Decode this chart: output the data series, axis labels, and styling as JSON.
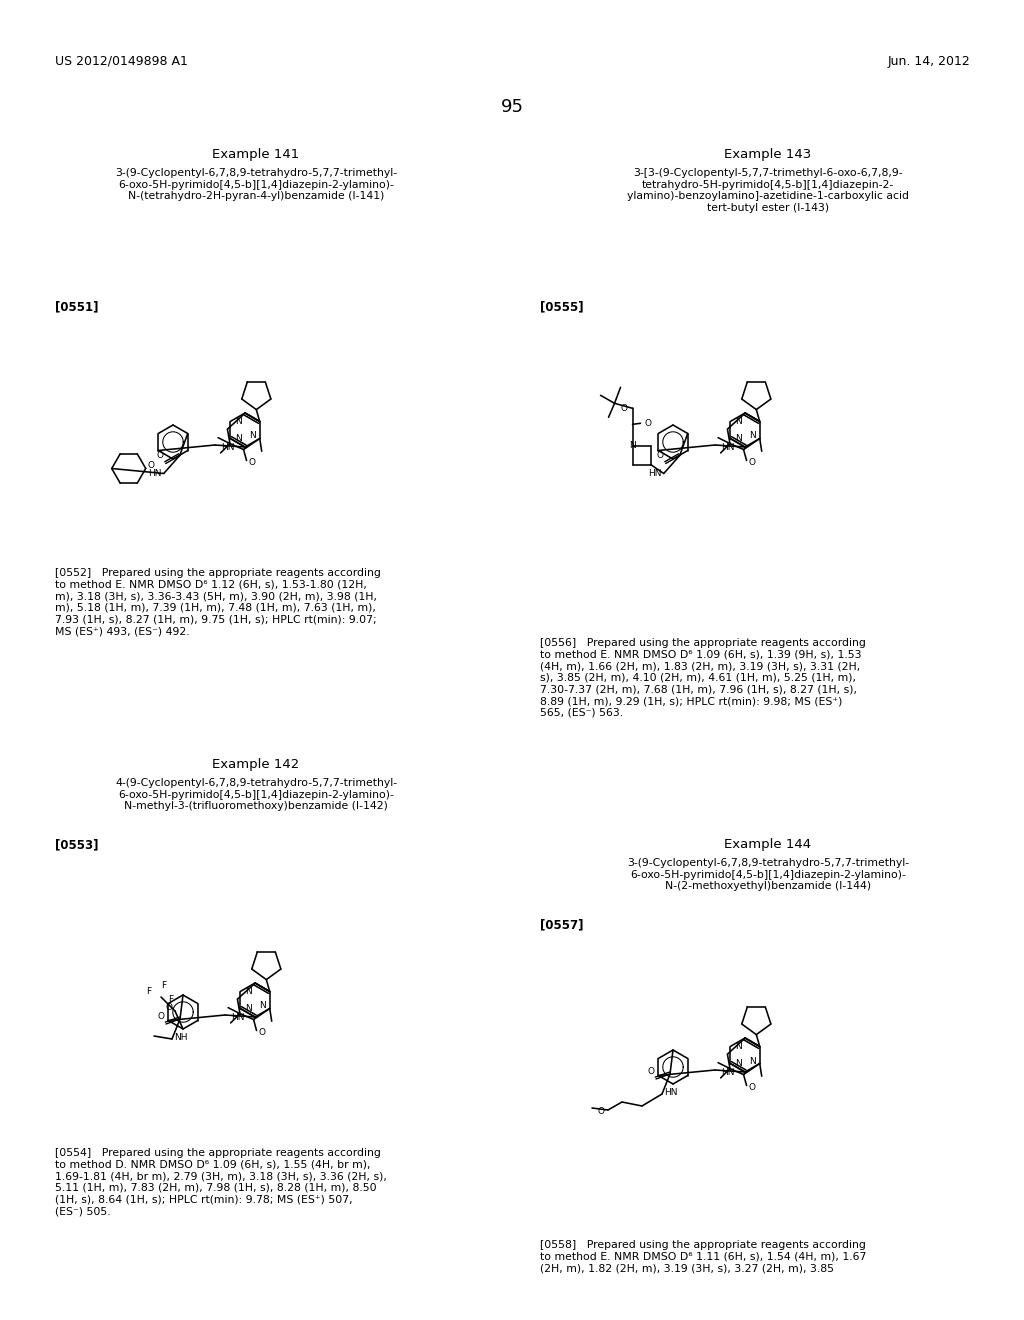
{
  "page_header_left": "US 2012/0149898 A1",
  "page_header_right": "Jun. 14, 2012",
  "page_number": "95",
  "background_color": "#ffffff",
  "text_color": "#000000",
  "font_size_header": 9,
  "font_size_body": 7.5,
  "font_size_page_num": 12,
  "font_size_example": 9,
  "example141_title": "Example 141",
  "example141_name": "3-(9-Cyclopentyl-6,7,8,9-tetrahydro-5,7,7-trimethyl-\n6-oxo-5H-pyrimido[4,5-b][1,4]diazepin-2-ylamino)-\nN-(tetrahydro-2H-pyran-4-yl)benzamide (I-141)",
  "example141_label": "[0551]",
  "example141_text": "[0552]   Prepared using the appropriate reagents according\nto method E. NMR DMSO D⁶ 1.12 (6H, s), 1.53-1.80 (12H,\nm), 3.18 (3H, s), 3.36-3.43 (5H, m), 3.90 (2H, m), 3.98 (1H,\nm), 5.18 (1H, m), 7.39 (1H, m), 7.48 (1H, m), 7.63 (1H, m),\n7.93 (1H, s), 8.27 (1H, m), 9.75 (1H, s); HPLC rt(min): 9.07;\nMS (ES⁺) 493, (ES⁻) 492.",
  "example142_title": "Example 142",
  "example142_name": "4-(9-Cyclopentyl-6,7,8,9-tetrahydro-5,7,7-trimethyl-\n6-oxo-5H-pyrimido[4,5-b][1,4]diazepin-2-ylamino)-\nN-methyl-3-(trifluoromethoxy)benzamide (I-142)",
  "example142_label": "[0553]",
  "example142_text": "[0554]   Prepared using the appropriate reagents according\nto method D. NMR DMSO D⁶ 1.09 (6H, s), 1.55 (4H, br m),\n1.69-1.81 (4H, br m), 2.79 (3H, m), 3.18 (3H, s), 3.36 (2H, s),\n5.11 (1H, m), 7.83 (2H, m), 7.98 (1H, s), 8.28 (1H, m), 8.50\n(1H, s), 8.64 (1H, s); HPLC rt(min): 9.78; MS (ES⁺) 507,\n(ES⁻) 505.",
  "example143_title": "Example 143",
  "example143_name": "3-[3-(9-Cyclopentyl-5,7,7-trimethyl-6-oxo-6,7,8,9-\ntetrahydro-5H-pyrimido[4,5-b][1,4]diazepin-2-\nylamino)-benzoylamino]-azetidine-1-carboxylic acid\ntert-butyl ester (I-143)",
  "example143_label": "[0555]",
  "example143_text": "[0556]   Prepared using the appropriate reagents according\nto method E. NMR DMSO D⁶ 1.09 (6H, s), 1.39 (9H, s), 1.53\n(4H, m), 1.66 (2H, m), 1.83 (2H, m), 3.19 (3H, s), 3.31 (2H,\ns), 3.85 (2H, m), 4.10 (2H, m), 4.61 (1H, m), 5.25 (1H, m),\n7.30-7.37 (2H, m), 7.68 (1H, m), 7.96 (1H, s), 8.27 (1H, s),\n8.89 (1H, m), 9.29 (1H, s); HPLC rt(min): 9.98; MS (ES⁺)\n565, (ES⁻) 563.",
  "example144_title": "Example 144",
  "example144_name": "3-(9-Cyclopentyl-6,7,8,9-tetrahydro-5,7,7-trimethyl-\n6-oxo-5H-pyrimido[4,5-b][1,4]diazepin-2-ylamino)-\nN-(2-methoxyethyl)benzamide (I-144)",
  "example144_label": "[0557]",
  "example144_text": "[0558]   Prepared using the appropriate reagents according\nto method E. NMR DMSO D⁶ 1.11 (6H, s), 1.54 (4H, m), 1.67\n(2H, m), 1.82 (2H, m), 3.19 (3H, s), 3.27 (2H, m), 3.85"
}
